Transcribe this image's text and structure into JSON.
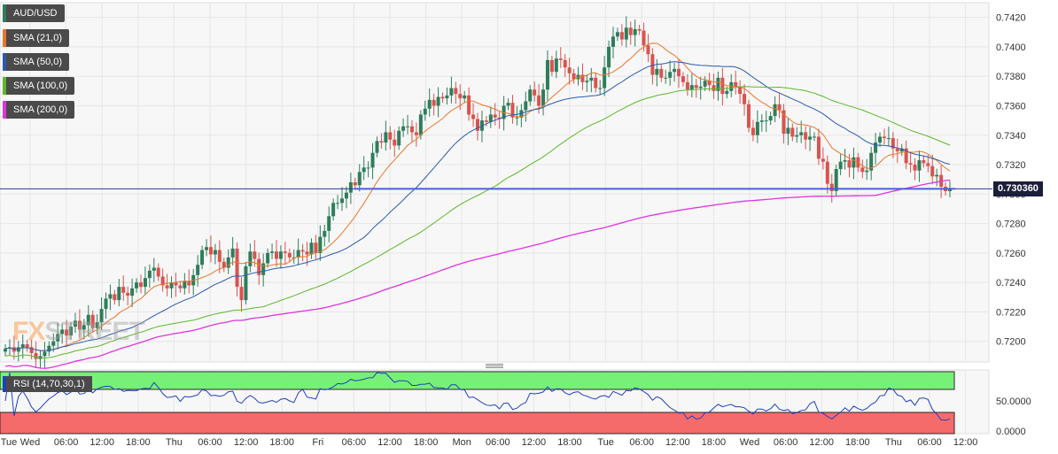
{
  "legend": [
    {
      "label": "AUD/USD",
      "color": "#2e7d5b"
    },
    {
      "label": "SMA (21,0)",
      "color": "#e8772a"
    },
    {
      "label": "SMA (50,0)",
      "color": "#2a5bb0"
    },
    {
      "label": "SMA (100,0)",
      "color": "#5cb82a"
    },
    {
      "label": "SMA (200,0)",
      "color": "#e033e0"
    }
  ],
  "current_price": "0.730360",
  "rsi_label": "RSI (14,70,30,1)",
  "watermark": {
    "fx": "FX",
    "street": "STREET"
  },
  "chart_data": {
    "type": "candlestick",
    "symbol": "AUD/USD",
    "ylim": [
      0.7186,
      0.743
    ],
    "y_ticks": [
      "0.7420",
      "0.7400",
      "0.7380",
      "0.7360",
      "0.7340",
      "0.7320",
      "0.7300",
      "0.7280",
      "0.7260",
      "0.7240",
      "0.7220",
      "0.7200"
    ],
    "x_ticks": [
      "Tue",
      "Wed",
      "06:00",
      "12:00",
      "18:00",
      "Thu",
      "06:00",
      "12:00",
      "18:00",
      "Fri",
      "06:00",
      "12:00",
      "18:00",
      "Mon",
      "06:00",
      "12:00",
      "18:00",
      "Tue",
      "06:00",
      "12:00",
      "18:00",
      "Wed",
      "06:00",
      "12:00",
      "18:00",
      "Thu",
      "06:00",
      "12:00"
    ],
    "horizontal_line": 0.73036,
    "close": [
      0.7195,
      0.7196,
      0.7193,
      0.7196,
      0.7198,
      0.7196,
      0.7192,
      0.7188,
      0.719,
      0.7193,
      0.7197,
      0.72,
      0.7205,
      0.7208,
      0.7204,
      0.721,
      0.7214,
      0.7208,
      0.7211,
      0.7218,
      0.7209,
      0.7213,
      0.7222,
      0.7229,
      0.7232,
      0.7228,
      0.7237,
      0.7233,
      0.7231,
      0.7236,
      0.724,
      0.7237,
      0.7243,
      0.7248,
      0.725,
      0.7244,
      0.7238,
      0.7236,
      0.724,
      0.7238,
      0.7236,
      0.7241,
      0.7238,
      0.7245,
      0.7252,
      0.7262,
      0.7264,
      0.7259,
      0.7262,
      0.7254,
      0.725,
      0.7257,
      0.7263,
      0.7237,
      0.7228,
      0.7251,
      0.7261,
      0.7256,
      0.7245,
      0.7253,
      0.726,
      0.7261,
      0.7256,
      0.7261,
      0.726,
      0.7257,
      0.7257,
      0.7262,
      0.7261,
      0.7259,
      0.7267,
      0.726,
      0.7271,
      0.7275,
      0.7285,
      0.7294,
      0.7294,
      0.7297,
      0.7301,
      0.7308,
      0.7306,
      0.7315,
      0.7318,
      0.7318,
      0.7328,
      0.7336,
      0.7335,
      0.7342,
      0.7337,
      0.7333,
      0.7343,
      0.7346,
      0.7346,
      0.7342,
      0.734,
      0.7354,
      0.7358,
      0.7364,
      0.736,
      0.7366,
      0.7365,
      0.7367,
      0.7372,
      0.7368,
      0.7365,
      0.7367,
      0.7354,
      0.7351,
      0.7343,
      0.735,
      0.7349,
      0.7354,
      0.7352,
      0.7351,
      0.736,
      0.7362,
      0.7352,
      0.7352,
      0.7357,
      0.7363,
      0.7371,
      0.7367,
      0.736,
      0.7371,
      0.7391,
      0.7383,
      0.7392,
      0.7391,
      0.7386,
      0.7382,
      0.7378,
      0.7381,
      0.7376,
      0.7377,
      0.7379,
      0.7372,
      0.7372,
      0.7386,
      0.74,
      0.7407,
      0.741,
      0.7405,
      0.7413,
      0.7408,
      0.7412,
      0.7411,
      0.7401,
      0.7395,
      0.7381,
      0.7385,
      0.7379,
      0.7379,
      0.7383,
      0.7385,
      0.738,
      0.7376,
      0.7371,
      0.7374,
      0.7372,
      0.7373,
      0.7377,
      0.7374,
      0.737,
      0.7379,
      0.7368,
      0.737,
      0.7376,
      0.7373,
      0.7368,
      0.7361,
      0.7345,
      0.734,
      0.7349,
      0.735,
      0.735,
      0.7353,
      0.7361,
      0.7357,
      0.7341,
      0.7345,
      0.7339,
      0.734,
      0.7342,
      0.7337,
      0.7339,
      0.7339,
      0.7324,
      0.7322,
      0.7307,
      0.7302,
      0.7317,
      0.7322,
      0.7323,
      0.7318,
      0.7325,
      0.7318,
      0.7315,
      0.7316,
      0.7328,
      0.7335,
      0.7339,
      0.7338,
      0.7338,
      0.7331,
      0.7329,
      0.7331,
      0.7321,
      0.732,
      0.7316,
      0.7323,
      0.7321,
      0.7319,
      0.7312,
      0.7313,
      0.7305,
      0.7302,
      0.73036
    ]
  }
}
